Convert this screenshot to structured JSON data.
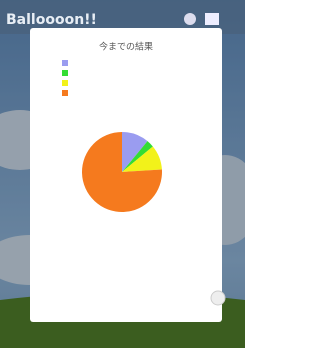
{
  "app": {
    "title": "Balloooon!!"
  },
  "chart_data": {
    "type": "pie",
    "title": "今までの結果",
    "values": [
      11,
      3,
      10,
      76
    ],
    "colors": [
      "#9a9cf0",
      "#33dd33",
      "#f2f21a",
      "#f57a1e"
    ]
  }
}
